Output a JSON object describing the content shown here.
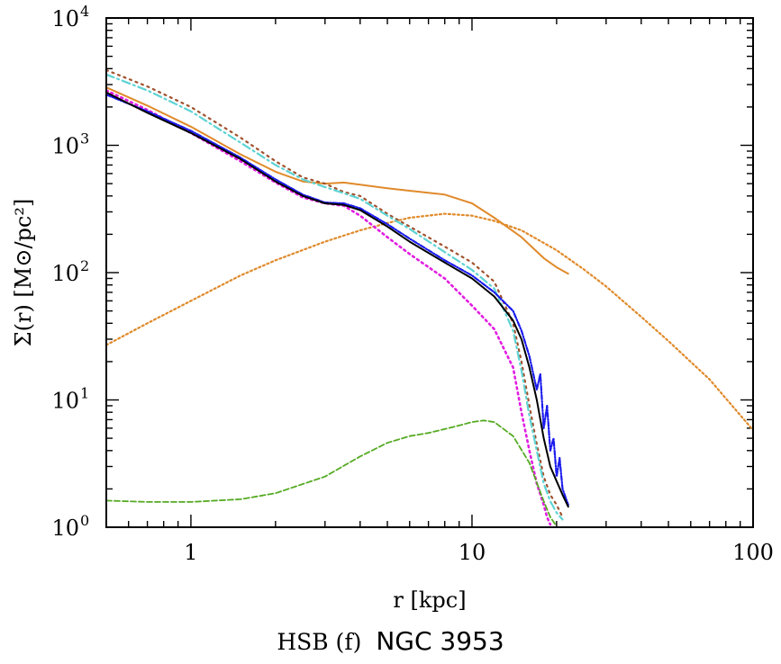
{
  "chart_data": {
    "type": "line",
    "title": "",
    "xlabel": "r [kpc]",
    "ylabel": "Σ(r) [M⊙/pc²]",
    "x_scale": "log",
    "y_scale": "log",
    "xlim": [
      0.5,
      100
    ],
    "ylim": [
      1,
      10000
    ],
    "x_ticks": [
      {
        "value": 1,
        "label": "1"
      },
      {
        "value": 10,
        "label": "10"
      },
      {
        "value": 100,
        "label": "100"
      }
    ],
    "y_ticks": [
      {
        "value": 1,
        "base": "10",
        "exp": "0"
      },
      {
        "value": 10,
        "base": "10",
        "exp": "1"
      },
      {
        "value": 100,
        "base": "10",
        "exp": "2"
      },
      {
        "value": 1000,
        "base": "10",
        "exp": "3"
      },
      {
        "value": 10000,
        "base": "10",
        "exp": "4"
      }
    ],
    "series": [
      {
        "name": "orange-dotted",
        "color": "#e08a2b",
        "dash": "2,3",
        "width": 2.2,
        "x": [
          0.5,
          0.7,
          1,
          1.5,
          2,
          3,
          4,
          5,
          6,
          8,
          10,
          12,
          15,
          20,
          25,
          30,
          40,
          50,
          70,
          100
        ],
        "y": [
          27,
          40,
          60,
          95,
          125,
          175,
          215,
          245,
          270,
          290,
          280,
          255,
          215,
          150,
          106,
          78,
          45,
          29,
          14.5,
          5.8
        ]
      },
      {
        "name": "orange-solid",
        "color": "#e08a2b",
        "dash": "",
        "width": 2,
        "x": [
          0.5,
          0.7,
          1,
          1.5,
          2,
          2.5,
          3,
          3.5,
          4,
          5,
          6,
          8,
          10,
          12,
          15,
          18,
          20,
          22
        ],
        "y": [
          2850,
          2050,
          1400,
          850,
          620,
          520,
          500,
          510,
          490,
          460,
          440,
          410,
          350,
          270,
          190,
          130,
          110,
          98
        ]
      },
      {
        "name": "sienna-dotted",
        "color": "#a0522d",
        "dash": "2,5",
        "width": 2.2,
        "x": [
          0.5,
          0.7,
          1,
          1.5,
          2,
          2.5,
          3,
          3.5,
          4,
          5,
          6,
          8,
          10,
          12,
          14,
          15,
          16,
          17,
          18,
          19,
          20,
          21
        ],
        "y": [
          3900,
          2900,
          2000,
          1150,
          750,
          560,
          500,
          430,
          400,
          290,
          230,
          160,
          120,
          85,
          40,
          20,
          9,
          4.5,
          2.5,
          1.8,
          1.5,
          1.2
        ]
      },
      {
        "name": "cyan-dashdot",
        "color": "#5fd3d3",
        "dash": "9,4,2,4",
        "width": 2.2,
        "x": [
          0.5,
          0.7,
          1,
          1.5,
          2,
          2.5,
          3,
          3.5,
          4,
          5,
          6,
          8,
          10,
          12,
          14,
          15,
          16,
          17,
          18,
          19,
          20,
          21
        ],
        "y": [
          3600,
          2700,
          1850,
          1050,
          700,
          540,
          470,
          420,
          380,
          280,
          220,
          145,
          105,
          75,
          35,
          17,
          7.5,
          4,
          2.2,
          1.6,
          1.3,
          1.15
        ]
      },
      {
        "name": "magenta-dotted",
        "color": "#e11ee1",
        "dash": "2,4",
        "width": 2.6,
        "x": [
          0.5,
          0.7,
          1,
          1.5,
          2,
          2.5,
          3,
          3.5,
          4,
          5,
          6,
          8,
          10,
          12,
          14,
          15,
          16,
          17,
          18,
          18.5,
          19
        ],
        "y": [
          2700,
          1900,
          1250,
          750,
          510,
          390,
          350,
          335,
          280,
          190,
          140,
          90,
          55,
          36,
          18,
          8,
          4,
          2.2,
          1.5,
          1.2,
          1.05
        ]
      },
      {
        "name": "blue-dashdot",
        "color": "#1a1aee",
        "dash": "5,2,1,2",
        "width": 2.2,
        "x": [
          0.5,
          0.7,
          1,
          1.5,
          2,
          2.5,
          3,
          3.5,
          4,
          5,
          6,
          8,
          10,
          12,
          14,
          15,
          16,
          17,
          17.5,
          18,
          18.5,
          19,
          19.5,
          20,
          20.5,
          21,
          22
        ],
        "y": [
          2500,
          1850,
          1300,
          800,
          540,
          410,
          355,
          350,
          320,
          240,
          185,
          125,
          95,
          70,
          50,
          35,
          22,
          12,
          16,
          6,
          9,
          4,
          5,
          2.5,
          3.5,
          2,
          1.5
        ]
      },
      {
        "name": "black-solid",
        "color": "#000000",
        "dash": "",
        "width": 2,
        "x": [
          0.5,
          0.7,
          1,
          1.5,
          2,
          2.5,
          3,
          3.5,
          4,
          5,
          6,
          8,
          10,
          12,
          14,
          15,
          16,
          17,
          18,
          19,
          20,
          21,
          22
        ],
        "y": [
          2600,
          1800,
          1250,
          780,
          520,
          400,
          350,
          340,
          310,
          230,
          175,
          120,
          90,
          65,
          42,
          30,
          18,
          10,
          5,
          3,
          2.3,
          1.8,
          1.45
        ]
      },
      {
        "name": "green-dashed",
        "color": "#55aa22",
        "dash": "6,3",
        "width": 1.8,
        "x": [
          0.5,
          0.7,
          1,
          1.5,
          2,
          3,
          4,
          5,
          6,
          7,
          8,
          9,
          10,
          11,
          12,
          14,
          16,
          18,
          19,
          20
        ],
        "y": [
          1.62,
          1.58,
          1.58,
          1.66,
          1.85,
          2.5,
          3.6,
          4.6,
          5.2,
          5.5,
          5.9,
          6.3,
          6.7,
          6.9,
          6.7,
          5.2,
          3.2,
          1.6,
          1.2,
          1.02
        ]
      }
    ]
  },
  "caption": {
    "prefix": "HSB (f)",
    "name": "NGC 3953"
  }
}
